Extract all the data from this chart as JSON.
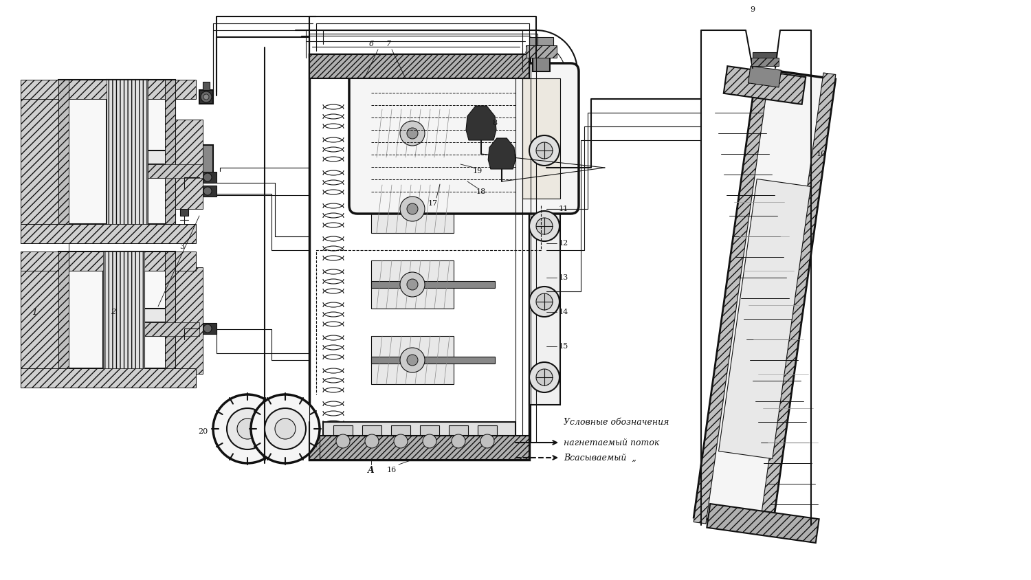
{
  "background_color": "#ffffff",
  "line_color": "#111111",
  "figure_width": 15.0,
  "figure_height": 8.44,
  "legend": {
    "title": "Условные обозначения",
    "line1": "нагнетаемый поток",
    "line2": "Всасываемый  „"
  }
}
